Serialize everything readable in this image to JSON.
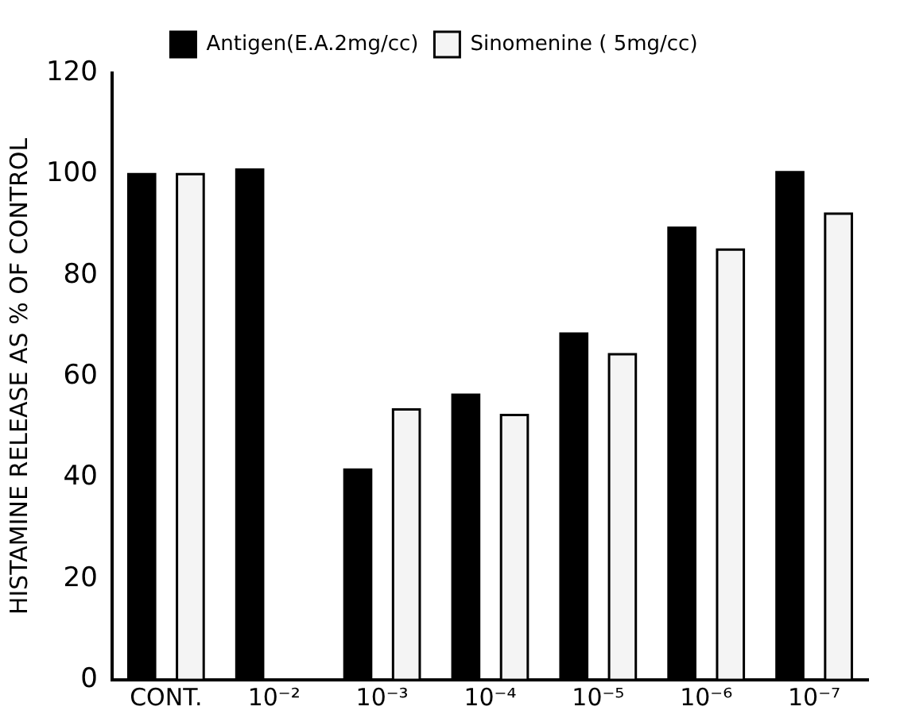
{
  "chart_data": {
    "type": "bar",
    "ylabel": "HISTAMINE RELEASE AS % OF CONTROL",
    "categories": [
      "CONT.",
      "10⁻²",
      "10⁻³",
      "10⁻⁴",
      "10⁻⁵",
      "10⁻⁶",
      "10⁻⁷"
    ],
    "series": [
      {
        "name": "Antigen(E.A.2mg/cc)",
        "color": "#000000",
        "values": [
          100,
          100.9,
          41.6,
          56.4,
          68.5,
          89.4,
          100.4
        ]
      },
      {
        "name": "Sinomenine ( 5mg/cc)",
        "color": "#f4f4f4",
        "values": [
          100,
          null,
          53.5,
          52.4,
          64.4,
          85.1,
          92.2
        ]
      }
    ],
    "ylim": [
      0,
      120
    ],
    "yticks": [
      0,
      20,
      40,
      60,
      80,
      100,
      120
    ],
    "grid": false,
    "legend": "top"
  }
}
